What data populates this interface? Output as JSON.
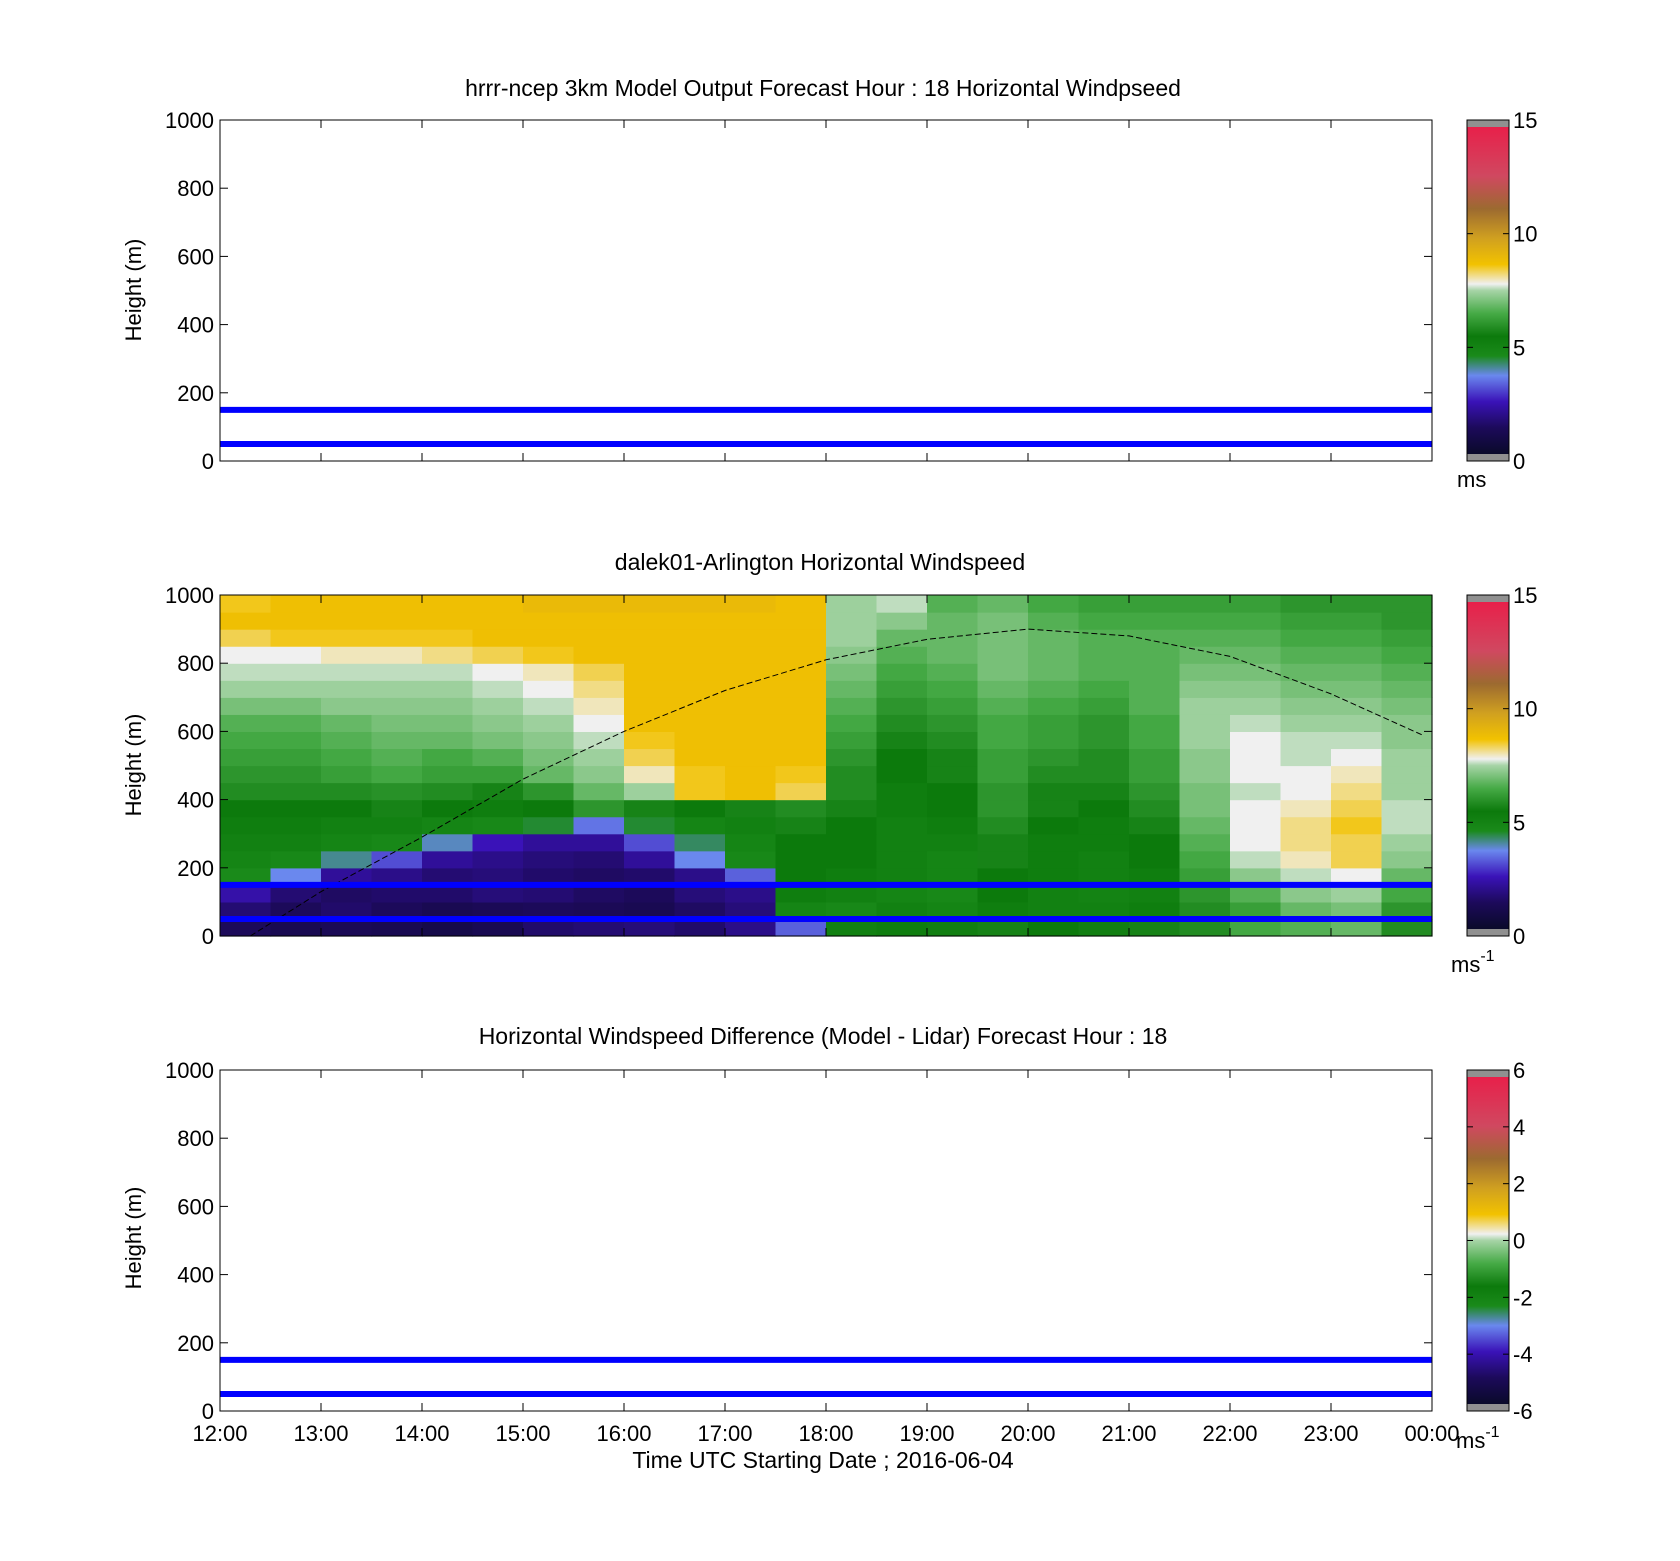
{
  "figure": {
    "x_label": "Time UTC  Starting Date ; 2016-06-04",
    "time_ticks": [
      "12:00",
      "13:00",
      "14:00",
      "15:00",
      "16:00",
      "17:00",
      "18:00",
      "19:00",
      "20:00",
      "21:00",
      "22:00",
      "23:00",
      "00:00"
    ],
    "height_ticks": [
      "0",
      "200",
      "400",
      "600",
      "800",
      "1000"
    ],
    "y_label": "Height (m)",
    "ylim": [
      0,
      1000
    ],
    "xlim_hours": [
      12,
      24
    ],
    "reference_lines": {
      "color": "#0000ff",
      "heights_m": [
        50,
        150
      ]
    }
  },
  "colormap": {
    "stops": [
      {
        "f": 0.0,
        "color": "#0a0a2a"
      },
      {
        "f": 0.08,
        "color": "#1c0a5a"
      },
      {
        "f": 0.16,
        "color": "#3a12b8"
      },
      {
        "f": 0.24,
        "color": "#6a88ee"
      },
      {
        "f": 0.3,
        "color": "#1a8a1a"
      },
      {
        "f": 0.36,
        "color": "#0c7a0c"
      },
      {
        "f": 0.43,
        "color": "#46aa46"
      },
      {
        "f": 0.5,
        "color": "#a6d4a6"
      },
      {
        "f": 0.52,
        "color": "#f0f0f0"
      },
      {
        "f": 0.58,
        "color": "#f2c200"
      },
      {
        "f": 0.66,
        "color": "#d0a020"
      },
      {
        "f": 0.75,
        "color": "#9c6a30"
      },
      {
        "f": 0.85,
        "color": "#d04860"
      },
      {
        "f": 1.0,
        "color": "#e8204a"
      }
    ],
    "over_under_color": "#909090"
  },
  "panels": [
    {
      "title": "hrrr-ncep 3km Model Output   Forecast Hour : 18 Horizontal Windpseed",
      "colorbar_ticks": [
        "0",
        "5",
        "10",
        "15"
      ],
      "colorbar_range": [
        0,
        15
      ],
      "colorbar_units": "ms",
      "show_x_tick_labels": false
    },
    {
      "title": "dalek01-Arlington  Horizontal Windspeed",
      "colorbar_ticks": [
        "0",
        "5",
        "10",
        "15"
      ],
      "colorbar_range": [
        0,
        15
      ],
      "colorbar_units": "ms",
      "colorbar_units_sup": "-1",
      "show_x_tick_labels": false
    },
    {
      "title": "Horizontal Windspeed Difference (Model - Lidar) Forecast Hour : 18",
      "colorbar_ticks": [
        "-6",
        "-4",
        "-2",
        "0",
        "2",
        "4",
        "6"
      ],
      "colorbar_range": [
        -6,
        6
      ],
      "colorbar_units": "ms",
      "colorbar_units_sup": "-1",
      "show_x_tick_labels": true
    }
  ],
  "chart_data": [
    {
      "type": "line",
      "title": "hrrr-ncep 3km Model Output   Forecast Hour : 18 Horizontal Windpseed",
      "xlabel": "",
      "ylabel": "Height (m)",
      "ylim": [
        0,
        1000
      ],
      "x_range_hours": [
        12,
        24
      ],
      "series": [],
      "note_lines": [
        50,
        150
      ]
    },
    {
      "type": "heatmap",
      "title": "dalek01-Arlington  Horizontal Windspeed",
      "xlabel": "",
      "ylabel": "Height (m)",
      "ylim": [
        0,
        1000
      ],
      "x_range_hours": [
        12,
        24
      ],
      "value_units": "ms-1",
      "value_range": [
        0,
        15
      ],
      "x_hours": [
        12.0,
        12.5,
        13.0,
        13.5,
        14.0,
        14.5,
        15.0,
        15.5,
        16.0,
        16.5,
        17.0,
        17.5,
        18.0,
        18.5,
        19.0,
        19.5,
        20.0,
        20.5,
        21.0,
        21.5,
        22.0,
        22.5,
        23.0,
        23.5
      ],
      "heights_m": [
        25,
        75,
        125,
        175,
        225,
        275,
        325,
        375,
        425,
        475,
        525,
        575,
        625,
        675,
        725,
        775,
        825,
        875,
        925,
        975
      ],
      "values": [
        [
          1.2,
          1.0,
          1.1,
          1.0,
          0.8,
          1.0,
          1.4,
          1.5,
          1.6,
          1.4,
          1.8,
          3.2,
          5.0,
          5.2,
          5.5,
          5.6,
          5.4,
          5.5,
          5.6,
          5.8,
          6.4,
          6.6,
          6.8,
          5.8
        ],
        [
          1.5,
          1.2,
          1.4,
          1.2,
          1.0,
          1.1,
          1.2,
          1.1,
          1.0,
          1.3,
          1.6,
          4.8,
          4.6,
          5.0,
          4.8,
          5.2,
          5.0,
          5.0,
          5.2,
          5.8,
          6.2,
          6.8,
          7.0,
          6.0
        ],
        [
          2.2,
          1.5,
          1.3,
          1.4,
          1.4,
          1.6,
          1.5,
          1.3,
          1.2,
          1.6,
          1.8,
          5.2,
          5.0,
          4.8,
          4.6,
          5.4,
          5.0,
          4.9,
          5.0,
          6.0,
          6.6,
          7.2,
          7.4,
          6.4
        ],
        [
          4.5,
          3.6,
          2.0,
          1.8,
          1.5,
          1.6,
          1.4,
          1.3,
          1.4,
          1.8,
          3.2,
          5.4,
          5.2,
          5.0,
          4.8,
          5.4,
          5.2,
          5.0,
          5.2,
          6.2,
          7.2,
          7.6,
          7.8,
          6.8
        ],
        [
          4.8,
          4.6,
          4.0,
          3.0,
          2.0,
          1.8,
          1.6,
          1.5,
          2.0,
          3.6,
          4.6,
          5.4,
          5.4,
          5.0,
          4.8,
          5.6,
          5.2,
          5.0,
          5.4,
          6.4,
          7.6,
          8.0,
          8.4,
          7.2
        ],
        [
          5.0,
          5.0,
          4.8,
          4.6,
          3.8,
          2.4,
          2.0,
          2.0,
          3.0,
          4.2,
          4.8,
          5.4,
          5.4,
          5.0,
          5.0,
          5.6,
          5.2,
          5.2,
          5.4,
          6.6,
          7.8,
          8.2,
          8.4,
          7.4
        ],
        [
          5.2,
          5.2,
          5.0,
          5.0,
          4.8,
          4.6,
          4.4,
          3.4,
          4.4,
          4.8,
          5.0,
          5.6,
          5.4,
          5.0,
          5.2,
          5.8,
          5.4,
          5.2,
          5.6,
          6.8,
          7.8,
          8.2,
          8.6,
          7.6
        ],
        [
          5.4,
          5.4,
          5.4,
          5.6,
          5.4,
          5.2,
          5.4,
          6.0,
          5.6,
          5.4,
          5.6,
          5.8,
          5.6,
          5.2,
          5.4,
          6.0,
          5.6,
          5.4,
          5.8,
          7.0,
          7.8,
          8.0,
          8.4,
          7.6
        ],
        [
          5.8,
          5.8,
          5.8,
          5.9,
          5.8,
          5.6,
          6.0,
          6.8,
          7.4,
          8.6,
          8.8,
          8.4,
          5.8,
          5.2,
          5.4,
          6.0,
          5.6,
          5.6,
          6.0,
          7.0,
          7.6,
          7.8,
          8.2,
          7.4
        ],
        [
          6.0,
          6.0,
          6.2,
          6.4,
          6.2,
          6.2,
          6.8,
          7.2,
          8.0,
          8.6,
          8.8,
          8.6,
          5.8,
          5.4,
          5.6,
          6.2,
          5.8,
          5.8,
          6.2,
          7.2,
          7.8,
          7.8,
          8.0,
          7.4
        ],
        [
          6.2,
          6.2,
          6.4,
          6.6,
          6.4,
          6.6,
          7.0,
          7.4,
          8.4,
          8.8,
          8.8,
          8.8,
          6.0,
          5.4,
          5.6,
          6.2,
          6.0,
          5.8,
          6.2,
          7.2,
          7.8,
          7.6,
          7.8,
          7.4
        ],
        [
          6.4,
          6.4,
          6.6,
          6.8,
          6.8,
          7.0,
          7.2,
          7.6,
          8.6,
          8.8,
          8.8,
          8.8,
          6.2,
          5.6,
          5.8,
          6.4,
          6.2,
          6.0,
          6.4,
          7.4,
          7.8,
          7.6,
          7.6,
          7.2
        ],
        [
          6.6,
          6.6,
          6.8,
          7.0,
          7.0,
          7.2,
          7.4,
          7.8,
          8.8,
          8.8,
          8.8,
          8.8,
          6.4,
          5.8,
          6.0,
          6.4,
          6.2,
          6.0,
          6.4,
          7.4,
          7.6,
          7.4,
          7.4,
          7.2
        ],
        [
          7.0,
          7.0,
          7.2,
          7.2,
          7.2,
          7.4,
          7.6,
          8.0,
          8.8,
          8.8,
          8.8,
          8.8,
          6.6,
          6.0,
          6.2,
          6.6,
          6.4,
          6.2,
          6.6,
          7.4,
          7.4,
          7.2,
          7.2,
          7.0
        ],
        [
          7.4,
          7.4,
          7.4,
          7.4,
          7.4,
          7.6,
          7.8,
          8.2,
          8.8,
          8.8,
          8.8,
          8.8,
          6.8,
          6.2,
          6.4,
          6.8,
          6.6,
          6.4,
          6.6,
          7.2,
          7.2,
          7.0,
          7.0,
          6.8
        ],
        [
          7.6,
          7.6,
          7.6,
          7.6,
          7.6,
          7.8,
          8.0,
          8.4,
          8.8,
          8.8,
          8.8,
          8.8,
          7.0,
          6.4,
          6.6,
          7.0,
          6.8,
          6.6,
          6.6,
          7.0,
          7.0,
          6.8,
          6.8,
          6.6
        ],
        [
          7.8,
          7.8,
          8.0,
          8.0,
          8.2,
          8.4,
          8.6,
          8.8,
          8.8,
          8.8,
          8.8,
          8.8,
          7.2,
          6.6,
          6.8,
          7.0,
          6.8,
          6.6,
          6.6,
          6.8,
          6.8,
          6.6,
          6.6,
          6.4
        ],
        [
          8.4,
          8.6,
          8.6,
          8.6,
          8.6,
          8.8,
          8.8,
          8.8,
          8.8,
          8.8,
          8.8,
          8.8,
          7.4,
          6.8,
          6.8,
          7.0,
          6.8,
          6.6,
          6.6,
          6.6,
          6.6,
          6.4,
          6.4,
          6.2
        ],
        [
          8.8,
          8.8,
          8.8,
          8.8,
          8.8,
          8.8,
          8.8,
          8.8,
          8.8,
          8.8,
          8.8,
          8.8,
          7.4,
          7.2,
          6.8,
          7.0,
          6.6,
          6.4,
          6.4,
          6.4,
          6.4,
          6.2,
          6.2,
          6.0
        ],
        [
          8.6,
          8.8,
          8.8,
          8.8,
          8.8,
          8.8,
          9.0,
          9.0,
          9.0,
          9.0,
          9.0,
          8.8,
          7.4,
          7.6,
          6.6,
          6.8,
          6.4,
          6.2,
          6.2,
          6.2,
          6.2,
          6.0,
          6.0,
          6.0
        ]
      ],
      "dashed_curve": {
        "x_hours": [
          12.3,
          13.0,
          14.0,
          15.0,
          16.0,
          17.0,
          18.0,
          19.0,
          20.0,
          21.0,
          22.0,
          23.0,
          23.9
        ],
        "heights_m": [
          0,
          130,
          290,
          460,
          600,
          720,
          810,
          870,
          900,
          880,
          820,
          710,
          590
        ]
      },
      "note_lines": [
        50,
        150
      ]
    },
    {
      "type": "line",
      "title": "Horizontal Windspeed Difference (Model - Lidar) Forecast Hour : 18",
      "xlabel": "Time UTC  Starting Date ; 2016-06-04",
      "ylabel": "Height (m)",
      "ylim": [
        0,
        1000
      ],
      "x_range_hours": [
        12,
        24
      ],
      "series": [],
      "note_lines": [
        50,
        150
      ]
    }
  ]
}
